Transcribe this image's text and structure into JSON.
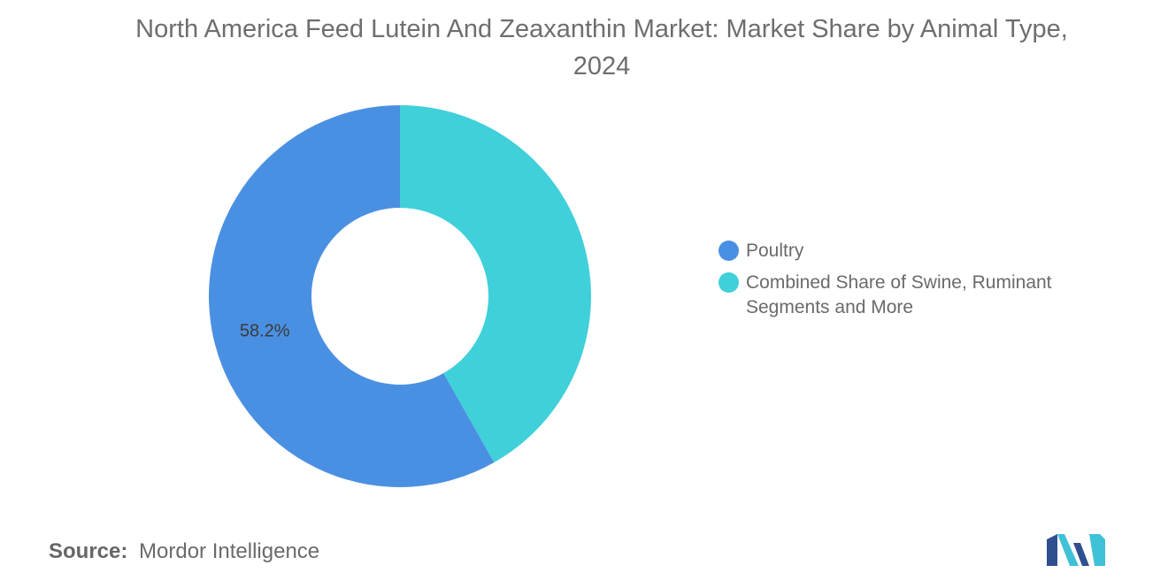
{
  "chart_data": {
    "type": "pie",
    "donut": true,
    "title": "North America Feed Lutein And Zeaxanthin Market: Market Share by Animal Type, 2024",
    "slices": [
      {
        "label": "Poultry",
        "value": 58.2,
        "color": "#4a90e2",
        "data_label": "58.2%"
      },
      {
        "label": "Combined Share of Swine, Ruminant Segments and More",
        "value": 41.8,
        "color": "#3fd0da",
        "data_label": ""
      }
    ],
    "legend_placement": "right"
  },
  "source": {
    "label": "Source:",
    "text": "Mordor Intelligence"
  },
  "logo": {
    "icon": "mordor-intelligence-logo-icon",
    "colors": [
      "#2f4f8f",
      "#3fc1d8"
    ]
  }
}
